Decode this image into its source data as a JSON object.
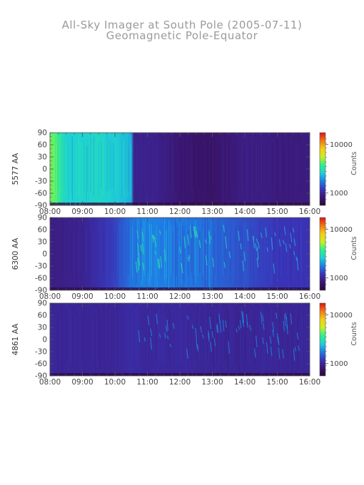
{
  "header": {
    "title": "All-Sky Imager at South Pole (2005-07-11)",
    "subtitle": "Geomagnetic Pole-Equator"
  },
  "colors": {
    "axis": "#555555",
    "title": "#9a9a9a",
    "colormap": [
      "#2a0836",
      "#3b1670",
      "#3a34b8",
      "#1e7fe6",
      "#1ed0d6",
      "#2ef08a",
      "#c8f020",
      "#f5d010",
      "#f07818",
      "#e01018"
    ]
  },
  "chart_data": [
    {
      "type": "heatmap",
      "panel": "5577",
      "ylabel": "5577 AA",
      "x_ticks": [
        "08:00",
        "09:00",
        "10:00",
        "11:00",
        "12:00",
        "13:00",
        "14:00",
        "15:00",
        "16:00"
      ],
      "y_ticks": [
        "90",
        "60",
        "30",
        "0",
        "-30",
        "-60",
        "-90"
      ],
      "xlim": [
        "08:00",
        "16:00"
      ],
      "ylim": [
        -90,
        90
      ],
      "colorbar": {
        "label": "Counts",
        "ticks": [
          "10000",
          "1000"
        ],
        "scale": "log"
      },
      "intensity_profile": {
        "hours": [
          "08:00",
          "08:10",
          "08:20",
          "08:30",
          "09:00",
          "09:30",
          "10:00",
          "10:30",
          "10:35",
          "11:00",
          "11:30",
          "12:00",
          "12:30",
          "13:00",
          "13:30",
          "14:00",
          "14:30",
          "15:00",
          "15:30",
          "16:00"
        ],
        "level": [
          0.6,
          0.58,
          0.5,
          0.45,
          0.45,
          0.47,
          0.44,
          0.4,
          0.15,
          0.16,
          0.14,
          0.12,
          0.1,
          0.1,
          0.12,
          0.14,
          0.14,
          0.13,
          0.13,
          0.14
        ]
      }
    },
    {
      "type": "heatmap",
      "panel": "6300",
      "ylabel": "6300 AA",
      "x_ticks": [
        "08:00",
        "09:00",
        "10:00",
        "11:00",
        "12:00",
        "13:00",
        "14:00",
        "15:00",
        "16:00"
      ],
      "y_ticks": [
        "90",
        "60",
        "30",
        "0",
        "-30",
        "-60",
        "-90"
      ],
      "xlim": [
        "08:00",
        "16:00"
      ],
      "ylim": [
        -90,
        90
      ],
      "colorbar": {
        "label": "Counts",
        "ticks": [
          "10000",
          "1000"
        ],
        "scale": "log"
      },
      "intensity_profile": {
        "hours": [
          "08:00",
          "09:00",
          "09:30",
          "10:00",
          "10:30",
          "11:00",
          "11:30",
          "12:00",
          "12:30",
          "13:00",
          "13:30",
          "14:00",
          "14:30",
          "15:00",
          "15:30",
          "16:00"
        ],
        "level": [
          0.14,
          0.16,
          0.2,
          0.24,
          0.32,
          0.34,
          0.33,
          0.32,
          0.32,
          0.3,
          0.28,
          0.26,
          0.24,
          0.22,
          0.22,
          0.22
        ]
      }
    },
    {
      "type": "heatmap",
      "panel": "4861",
      "ylabel": "4861 AA",
      "x_ticks": [
        "08:00",
        "09:00",
        "10:00",
        "11:00",
        "12:00",
        "13:00",
        "14:00",
        "15:00",
        "16:00"
      ],
      "y_ticks": [
        "90",
        "60",
        "30",
        "0",
        "-30",
        "-60",
        "-90"
      ],
      "xlim": [
        "08:00",
        "16:00"
      ],
      "ylim": [
        -90,
        90
      ],
      "colorbar": {
        "label": "Counts",
        "ticks": [
          "10000",
          "1000"
        ],
        "scale": "log"
      },
      "intensity_profile": {
        "hours": [
          "08:00",
          "10:00",
          "10:30",
          "11:00",
          "12:00",
          "13:00",
          "14:00",
          "15:00",
          "16:00"
        ],
        "level": [
          0.17,
          0.17,
          0.19,
          0.18,
          0.18,
          0.17,
          0.17,
          0.17,
          0.17
        ]
      }
    }
  ]
}
